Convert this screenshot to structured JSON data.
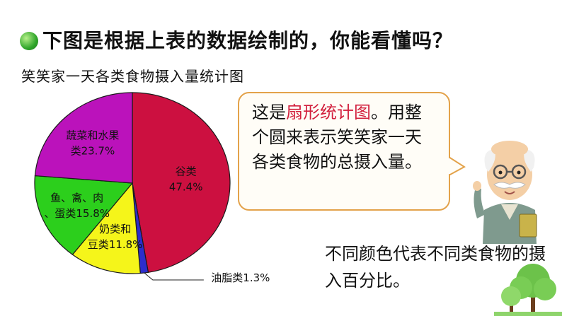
{
  "heading": "下图是根据上表的数据绘制的，你能看懂吗？",
  "chart_data": {
    "type": "pie",
    "title": "笑笑家一天各类食物摄入量统计图",
    "slices": [
      {
        "label": "谷类",
        "value": 47.4,
        "value_label": "47.4%",
        "color": "#cc1040"
      },
      {
        "label": "油脂类",
        "value": 1.3,
        "value_label": "1.3%",
        "color": "#2d2dcc"
      },
      {
        "label": "奶类和豆类",
        "value": 11.8,
        "value_label": "11.8%",
        "color": "#f5f51a"
      },
      {
        "label": "鱼、禽、肉、蛋类",
        "value": 15.8,
        "value_label": "15.8%",
        "color": "#2ccf1c"
      },
      {
        "label": "蔬菜和水果类",
        "value": 23.7,
        "value_label": "23.7%",
        "color": "#bb12bb"
      }
    ],
    "start": "12 o'clock",
    "direction": "clockwise"
  },
  "bubble": {
    "line1_prefix": "这是",
    "line1_highlight": "扇形统计图",
    "line1_suffix": "。",
    "body": "用整个圆来表示笑笑家一天各类食物的总摄入量。",
    "highlight_color": "#d21f3c"
  },
  "note": "不同颜色代表不同类食物的摄入百分比。",
  "icons": [
    "bullet-dot-icon",
    "old-teacher-illustration",
    "tree-icon"
  ]
}
